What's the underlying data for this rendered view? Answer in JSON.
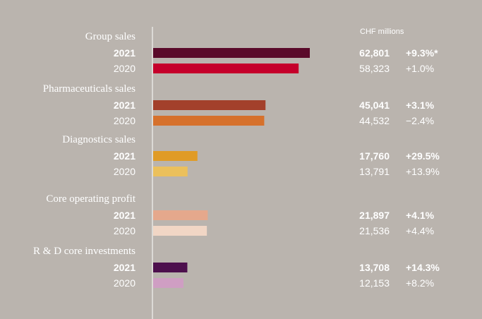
{
  "unit_label": "CHF millions",
  "chart_data": {
    "type": "bar",
    "orientation": "horizontal",
    "unit": "CHF millions",
    "xlim": [
      0,
      62801
    ],
    "groups": [
      {
        "title": "Group sales",
        "rows": [
          {
            "year": "2021",
            "value": 62801,
            "value_label": "62,801",
            "change": "+9.3%*",
            "color": "#5a0a2a",
            "bold": true
          },
          {
            "year": "2020",
            "value": 58323,
            "value_label": "58,323",
            "change": "+1.0%",
            "color": "#c5002b",
            "bold": false
          }
        ]
      },
      {
        "title": "Pharmaceuticals sales",
        "rows": [
          {
            "year": "2021",
            "value": 45041,
            "value_label": "45,041",
            "change": "+3.1%",
            "color": "#a3402b",
            "bold": true
          },
          {
            "year": "2020",
            "value": 44532,
            "value_label": "44,532",
            "change": "−2.4%",
            "color": "#d6712c",
            "bold": false
          }
        ]
      },
      {
        "title": "Diagnostics sales",
        "rows": [
          {
            "year": "2021",
            "value": 17760,
            "value_label": "17,760",
            "change": "+29.5%",
            "color": "#e09b26",
            "bold": true
          },
          {
            "year": "2020",
            "value": 13791,
            "value_label": "13,791",
            "change": "+13.9%",
            "color": "#ebc05c",
            "bold": false
          }
        ]
      },
      {
        "title": "Core operating profit",
        "rows": [
          {
            "year": "2021",
            "value": 21897,
            "value_label": "21,897",
            "change": "+4.1%",
            "color": "#e5a88c",
            "bold": true
          },
          {
            "year": "2020",
            "value": 21536,
            "value_label": "21,536",
            "change": "+4.4%",
            "color": "#f1d6c5",
            "bold": false
          }
        ]
      },
      {
        "title": "R & D core investments",
        "rows": [
          {
            "year": "2021",
            "value": 13708,
            "value_label": "13,708",
            "change": "+14.3%",
            "color": "#4d0f4d",
            "bold": true
          },
          {
            "year": "2020",
            "value": 12153,
            "value_label": "12,153",
            "change": "+8.2%",
            "color": "#cf9ec3",
            "bold": false
          }
        ]
      }
    ]
  }
}
